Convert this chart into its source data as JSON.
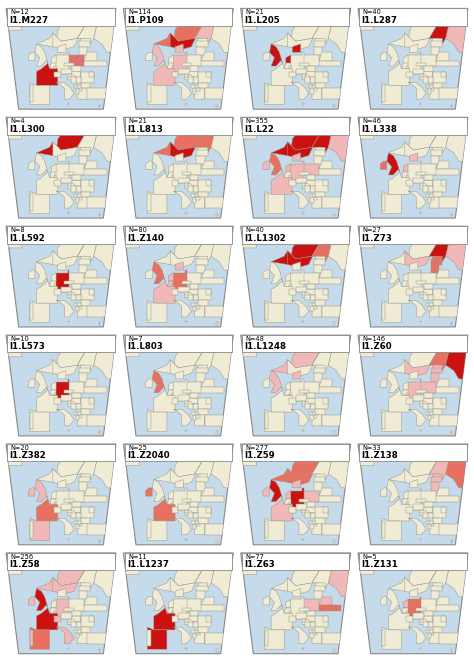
{
  "grid_rows": 6,
  "grid_cols": 4,
  "maps": [
    {
      "label": "I1.M227",
      "n": "N=12",
      "row": 0,
      "col": 0,
      "highlights": {
        "France": "#cc1111",
        "Poland": "#e07070"
      }
    },
    {
      "label": "I1.P109",
      "n": "N=114",
      "row": 0,
      "col": 1,
      "highlights": {
        "Sweden": "#cc1111",
        "Norway": "#e87060",
        "France": "#f0b8b8",
        "Germany": "#f0b8b8",
        "United Kingdom": "#f0b8b8",
        "Finland": "#f0b8b8",
        "Denmark": "#f0b8b8"
      }
    },
    {
      "label": "I1.L205",
      "n": "N=21",
      "row": 0,
      "col": 2,
      "highlights": {
        "United Kingdom": "#cc1111",
        "Denmark": "#cc1111",
        "Netherlands": "#cc1111"
      }
    },
    {
      "label": "I1.L287",
      "n": "N=40",
      "row": 0,
      "col": 3,
      "highlights": {
        "Finland": "#cc1111",
        "Russia": "#f0b8b8"
      }
    },
    {
      "label": "I1.L300",
      "n": "N=4",
      "row": 1,
      "col": 0,
      "highlights": {
        "Norway": "#cc1111"
      }
    },
    {
      "label": "I1.L813",
      "n": "N=21",
      "row": 1,
      "col": 1,
      "highlights": {
        "Sweden": "#cc1111",
        "Finland": "#e87060",
        "Norway": "#e87060"
      }
    },
    {
      "label": "I1.L22",
      "n": "N=355",
      "row": 1,
      "col": 2,
      "highlights": {
        "Norway": "#cc1111",
        "Sweden": "#cc1111",
        "Finland": "#cc1111",
        "United Kingdom": "#e87060",
        "Germany": "#f0b8b8",
        "France": "#f0b8b8",
        "Denmark": "#f0b8b8",
        "Netherlands": "#f0b8b8",
        "Poland": "#f0b8b8",
        "Russia": "#f0b8b8",
        "Ireland": "#f0b8b8"
      }
    },
    {
      "label": "I1.L338",
      "n": "N=46",
      "row": 1,
      "col": 3,
      "highlights": {
        "United Kingdom": "#cc1111",
        "Ireland": "#e87060",
        "Netherlands": "#f0b8b8",
        "Denmark": "#f0b8b8"
      }
    },
    {
      "label": "I1.L592",
      "n": "N=8",
      "row": 2,
      "col": 0,
      "highlights": {
        "Germany": "#cc1111"
      }
    },
    {
      "label": "I1.Z140",
      "n": "N=80",
      "row": 2,
      "col": 1,
      "highlights": {
        "United Kingdom": "#e87060",
        "Germany": "#e87060",
        "Netherlands": "#f0b8b8",
        "France": "#f0b8b8",
        "Belgium": "#f0b8b8",
        "Denmark": "#f0b8b8"
      }
    },
    {
      "label": "I1.L1302",
      "n": "N=40",
      "row": 2,
      "col": 2,
      "highlights": {
        "Norway": "#cc1111",
        "Sweden": "#cc1111",
        "Finland": "#e87060"
      }
    },
    {
      "label": "I1.Z73",
      "n": "N=27",
      "row": 2,
      "col": 3,
      "highlights": {
        "Finland": "#cc1111",
        "Estonia": "#e87060",
        "Latvia": "#e87060",
        "Lithuania": "#e87060",
        "Russia": "#f0b8b8",
        "Sweden": "#f0b8b8"
      }
    },
    {
      "label": "I1.L573",
      "n": "N=10",
      "row": 3,
      "col": 0,
      "highlights": {
        "Germany": "#cc1111"
      }
    },
    {
      "label": "I1.L803",
      "n": "N=7",
      "row": 3,
      "col": 1,
      "highlights": {
        "United Kingdom": "#e87060"
      }
    },
    {
      "label": "I1.L1248",
      "n": "N=48",
      "row": 3,
      "col": 2,
      "highlights": {
        "United Kingdom": "#f0b8b8",
        "Norway": "#f0b8b8",
        "Denmark": "#f0b8b8"
      }
    },
    {
      "label": "I1.Z60",
      "n": "N=146",
      "row": 3,
      "col": 3,
      "highlights": {
        "Russia": "#cc1111",
        "Finland": "#e87060",
        "Germany": "#f0b8b8",
        "Estonia": "#f0b8b8",
        "Latvia": "#f0b8b8",
        "Lithuania": "#f0b8b8",
        "Poland": "#f0b8b8",
        "Sweden": "#f0b8b8"
      }
    },
    {
      "label": "I1.Z382",
      "n": "N=20",
      "row": 4,
      "col": 0,
      "highlights": {
        "France": "#e87060",
        "Spain": "#f0b8b8",
        "United Kingdom": "#f0b8b8",
        "Ireland": "#f0b8b8"
      }
    },
    {
      "label": "I1.Z2040",
      "n": "N=25",
      "row": 4,
      "col": 1,
      "highlights": {
        "France": "#e87060",
        "Ireland": "#e87060"
      }
    },
    {
      "label": "I1.Z59",
      "n": "N=277",
      "row": 4,
      "col": 2,
      "highlights": {
        "Norway": "#e87060",
        "Sweden": "#e87060",
        "United Kingdom": "#cc1111",
        "Germany": "#cc1111",
        "France": "#f0b8b8",
        "Denmark": "#f0b8b8",
        "Netherlands": "#f0b8b8",
        "Ireland": "#f0b8b8",
        "Poland": "#f0b8b8"
      }
    },
    {
      "label": "I1.Z138",
      "n": "N=33",
      "row": 4,
      "col": 3,
      "highlights": {
        "Russia": "#e87060",
        "Estonia": "#f0b8b8",
        "Latvia": "#f0b8b8",
        "Lithuania": "#f0b8b8",
        "Finland": "#f0b8b8"
      }
    },
    {
      "label": "I1.Z58",
      "n": "N=256",
      "row": 5,
      "col": 0,
      "highlights": {
        "United Kingdom": "#cc1111",
        "France": "#cc1111",
        "Spain": "#e87060",
        "Italy": "#f0b8b8",
        "Germany": "#f0b8b8",
        "Norway": "#f0b8b8",
        "Sweden": "#f0b8b8",
        "Portugal": "#f0b8b8",
        "Ireland": "#f0b8b8",
        "Switzerland": "#f0b8b8"
      }
    },
    {
      "label": "I1.L1237",
      "n": "N=11",
      "row": 5,
      "col": 1,
      "highlights": {
        "France": "#cc1111",
        "Spain": "#cc1111"
      }
    },
    {
      "label": "I1.Z63",
      "n": "N=77",
      "row": 5,
      "col": 2,
      "highlights": {
        "Ukraine": "#e87060",
        "Poland": "#f0b8b8",
        "Russia": "#f0b8b8",
        "Belarus": "#f0b8b8"
      }
    },
    {
      "label": "I1.Z131",
      "n": "N=5",
      "row": 5,
      "col": 3,
      "highlights": {
        "Germany": "#e87060",
        "Netherlands": "#f0b8b8"
      }
    }
  ],
  "sea_color": "#c5daea",
  "land_color": "#f0ebd5",
  "border_color": "#999988",
  "outline_color": "#888888",
  "white": "#ffffff",
  "label_fs": 6.2,
  "n_fs": 4.8
}
